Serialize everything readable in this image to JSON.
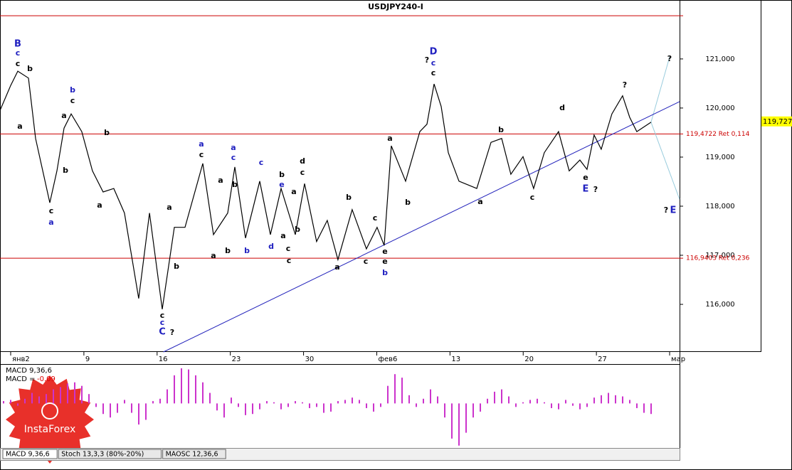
{
  "chart_data": [
    {
      "type": "line",
      "title": "USDJPY240-I",
      "color": "#000000",
      "x": [
        -1.0,
        0,
        0.68,
        1.7,
        2.38,
        3.74,
        4.42,
        5.1,
        5.78,
        6.8,
        7.82,
        8.84,
        9.86,
        10.88,
        12.24,
        13.27,
        14.49,
        15.65,
        16.67,
        18.37,
        19.39,
        20.75,
        21.43,
        22.45,
        23.81,
        24.83,
        25.85,
        27.21,
        28.1,
        29.25,
        30.27,
        31.29,
        32.65,
        34.01,
        35.03,
        35.71,
        36.39,
        37.76,
        39.12,
        39.8,
        40.48,
        41.16,
        41.84,
        42.86,
        44.56,
        45.92,
        46.94,
        47.82,
        48.98,
        50.0,
        51.02,
        52.38,
        53.4,
        54.42,
        55.1,
        55.78,
        56.46,
        57.48,
        58.5,
        59.18,
        59.86,
        61.22
      ],
      "values": [
        119.96,
        120.46,
        120.75,
        120.61,
        119.38,
        118.07,
        118.72,
        119.59,
        119.88,
        119.52,
        118.72,
        118.29,
        118.36,
        117.86,
        116.12,
        117.86,
        115.9,
        117.57,
        117.57,
        118.87,
        117.42,
        117.86,
        118.8,
        117.35,
        118.51,
        117.42,
        118.36,
        117.42,
        118.46,
        117.28,
        117.71,
        116.91,
        117.93,
        117.13,
        117.57,
        117.2,
        119.23,
        118.51,
        119.52,
        119.67,
        120.49,
        120.03,
        119.09,
        118.51,
        118.36,
        119.3,
        119.38,
        118.65,
        119.01,
        118.36,
        119.09,
        119.52,
        118.72,
        118.94,
        118.75,
        119.45,
        119.16,
        119.88,
        120.25,
        119.81,
        119.52,
        119.71
      ],
      "xlim": [
        -1.02,
        63.95
      ],
      "xticks": [
        {
          "value": 0,
          "label": "янв2"
        },
        {
          "value": 7,
          "label": "9"
        },
        {
          "value": 14,
          "label": "16"
        },
        {
          "value": 21,
          "label": "23"
        },
        {
          "value": 28,
          "label": "30"
        },
        {
          "value": 35,
          "label": "фев6"
        },
        {
          "value": 42,
          "label": "13"
        },
        {
          "value": 49,
          "label": "20"
        },
        {
          "value": 56,
          "label": "27"
        },
        {
          "value": 63,
          "label": "мар"
        }
      ],
      "ylim": [
        115.03,
        121.94
      ],
      "yticks": [
        {
          "value": 116,
          "label": "116,000"
        },
        {
          "value": 117,
          "label": "117,000"
        },
        {
          "value": 118,
          "label": "118,000"
        },
        {
          "value": 119,
          "label": "119,000"
        },
        {
          "value": 120,
          "label": "120,000"
        },
        {
          "value": 121,
          "label": "121,000"
        }
      ],
      "levels": [
        {
          "value": 121.88,
          "color": "#cc0000"
        },
        {
          "value": 119.4722,
          "label": "119,4722 Ret 0,114",
          "color": "#cc0000"
        },
        {
          "value": 116.9403,
          "label": "116,9403 Ret 0,236",
          "color": "#cc0000"
        }
      ],
      "trendline": {
        "x": [
          14.6,
          63.95
        ],
        "y": [
          115.03,
          120.13
        ],
        "color": "#2222bb"
      },
      "projections": [
        {
          "x": [
            61.22,
            63.0
          ],
          "y": [
            119.71,
            121.04
          ]
        },
        {
          "x": [
            61.22,
            63.95
          ],
          "y": [
            119.71,
            118.14
          ]
        }
      ],
      "current_price": {
        "value": 119.727,
        "label": "119,727"
      },
      "annotations": [
        {
          "text": "B",
          "color": "#2020c0"
        },
        {
          "text": "c",
          "color": "#2020c0"
        },
        {
          "text": "c",
          "color": "#000000"
        },
        {
          "text": "b",
          "color": "#000000"
        },
        {
          "text": "a",
          "color": "#000000"
        },
        {
          "text": "a",
          "color": "#000000"
        },
        {
          "text": "b",
          "color": "#2020c0"
        },
        {
          "text": "c",
          "color": "#000000"
        },
        {
          "text": "b",
          "color": "#000000"
        },
        {
          "text": "b",
          "color": "#000000"
        },
        {
          "text": "c",
          "color": "#000000"
        },
        {
          "text": "a",
          "color": "#2020c0"
        },
        {
          "text": "a",
          "color": "#000000"
        },
        {
          "text": "a",
          "color": "#000000"
        },
        {
          "text": "b",
          "color": "#000000"
        },
        {
          "text": "c",
          "color": "#000000"
        },
        {
          "text": "c",
          "color": "#2020c0"
        },
        {
          "text": "C",
          "color": "#2020c0"
        },
        {
          "text": "?",
          "color": "#000000"
        },
        {
          "text": "a",
          "color": "#2020c0"
        },
        {
          "text": "c",
          "color": "#000000"
        },
        {
          "text": "a",
          "color": "#2020c0"
        },
        {
          "text": "c",
          "color": "#2020c0"
        },
        {
          "text": "a",
          "color": "#000000"
        },
        {
          "text": "b",
          "color": "#000000"
        },
        {
          "text": "c",
          "color": "#2020c0"
        },
        {
          "text": "b",
          "color": "#000000"
        },
        {
          "text": "e",
          "color": "#2020c0"
        },
        {
          "text": "d",
          "color": "#000000"
        },
        {
          "text": "c",
          "color": "#000000"
        },
        {
          "text": "a",
          "color": "#000000"
        },
        {
          "text": "a",
          "color": "#000000"
        },
        {
          "text": "b",
          "color": "#000000"
        },
        {
          "text": "b",
          "color": "#2020c0"
        },
        {
          "text": "d",
          "color": "#2020c0"
        },
        {
          "text": "c",
          "color": "#000000"
        },
        {
          "text": "c",
          "color": "#000000"
        },
        {
          "text": "a",
          "color": "#000000"
        },
        {
          "text": "b",
          "color": "#000000"
        },
        {
          "text": "b",
          "color": "#000000"
        },
        {
          "text": "c",
          "color": "#000000"
        },
        {
          "text": "a",
          "color": "#000000"
        },
        {
          "text": "c",
          "color": "#000000"
        },
        {
          "text": "e",
          "color": "#000000"
        },
        {
          "text": "e",
          "color": "#000000"
        },
        {
          "text": "b",
          "color": "#2020c0"
        },
        {
          "text": "a",
          "color": "#000000"
        },
        {
          "text": "b",
          "color": "#000000"
        },
        {
          "text": "?",
          "color": "#000000"
        },
        {
          "text": "D",
          "color": "#2020c0"
        },
        {
          "text": "c",
          "color": "#2020c0"
        },
        {
          "text": "c",
          "color": "#000000"
        },
        {
          "text": "?",
          "color": "#000000"
        },
        {
          "text": "d",
          "color": "#000000"
        },
        {
          "text": "b",
          "color": "#000000"
        },
        {
          "text": "a",
          "color": "#000000"
        },
        {
          "text": "c",
          "color": "#000000"
        },
        {
          "text": "e",
          "color": "#000000"
        },
        {
          "text": "E",
          "color": "#2020c0"
        },
        {
          "text": "?",
          "color": "#000000"
        },
        {
          "text": "?",
          "color": "#000000"
        },
        {
          "text": "?",
          "color": "#000000"
        },
        {
          "text": "E",
          "color": "#2020c0"
        }
      ]
    },
    {
      "type": "bar",
      "title": "MACD 9,36,6",
      "value_text": "MACD =",
      "current": -0.09,
      "color": "#cc33cc",
      "ylim": [
        -0.38,
        0.33
      ],
      "values": [
        0.02,
        0.03,
        -0.02,
        0.04,
        0.09,
        0.06,
        0.08,
        0.12,
        0.14,
        0.17,
        0.18,
        0.15,
        0.08,
        -0.03,
        -0.09,
        -0.12,
        -0.08,
        0.03,
        -0.08,
        -0.18,
        -0.14,
        0.02,
        0.04,
        0.12,
        0.24,
        0.3,
        0.29,
        0.24,
        0.18,
        0.09,
        -0.06,
        -0.12,
        0.05,
        -0.03,
        -0.1,
        -0.09,
        -0.05,
        0.02,
        0.01,
        -0.05,
        -0.03,
        0.02,
        0.01,
        -0.04,
        -0.03,
        -0.08,
        -0.07,
        0.02,
        0.03,
        0.05,
        0.03,
        -0.04,
        -0.07,
        -0.03,
        0.15,
        0.25,
        0.22,
        0.07,
        -0.03,
        0.04,
        0.12,
        0.06,
        -0.12,
        -0.3,
        -0.36,
        -0.25,
        -0.12,
        -0.07,
        0.04,
        0.1,
        0.12,
        0.06,
        -0.03,
        0.01,
        0.03,
        0.04,
        0.01,
        -0.04,
        -0.05,
        0.03,
        -0.02,
        -0.05,
        -0.03,
        0.05,
        0.07,
        0.09,
        0.07,
        0.06,
        0.03,
        -0.04,
        -0.08,
        -0.09
      ]
    }
  ],
  "tabs": [
    "MACD 9,36,6",
    "Stoch 13,3,3 (80%-20%)",
    "MAOSC 12,36,6"
  ],
  "logo": "InstaForex"
}
